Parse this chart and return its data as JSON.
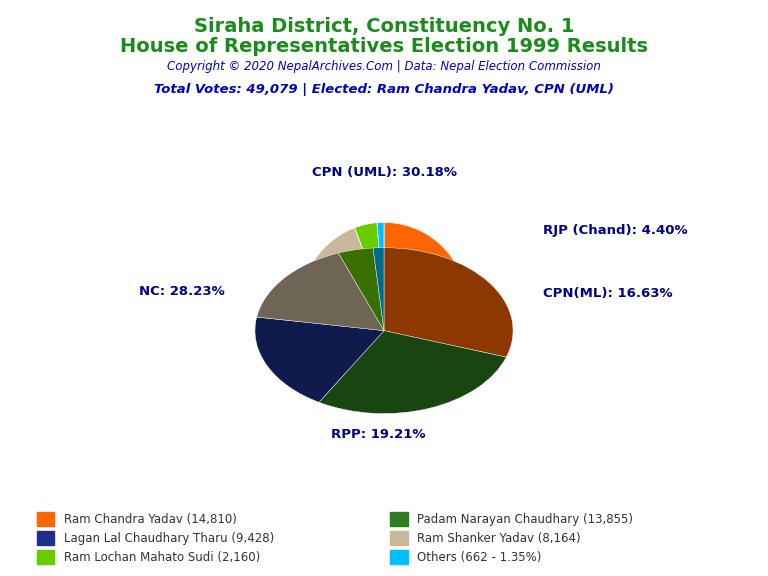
{
  "title_line1": "Siraha District, Constituency No. 1",
  "title_line2": "House of Representatives Election 1999 Results",
  "title_color": "#1a8c1a",
  "copyright_text": "Copyright © 2020 NepalArchives.Com | Data: Nepal Election Commission",
  "copyright_color": "#0000CC",
  "info_text": "Total Votes: 49,079 | Elected: Ram Chandra Yadav, CPN (UML)",
  "info_color": "#0000CC",
  "slices": [
    {
      "label": "CPN (UML): 30.18%",
      "value": 14810,
      "color": "#FF6600"
    },
    {
      "label": "NC: 28.23%",
      "value": 13855,
      "color": "#2E7D1E"
    },
    {
      "label": "RPP: 19.21%",
      "value": 9428,
      "color": "#1C2F8C"
    },
    {
      "label": "CPN(ML): 16.63%",
      "value": 8164,
      "color": "#C8B89A"
    },
    {
      "label": "RJP (Chand): 4.40%",
      "value": 2160,
      "color": "#66CC00"
    },
    {
      "label": "Others: 1.35%",
      "value": 662,
      "color": "#00BFFF"
    }
  ],
  "legend_entries": [
    {
      "label": "Ram Chandra Yadav (14,810)",
      "color": "#FF6600"
    },
    {
      "label": "Lagan Lal Chaudhary Tharu (9,428)",
      "color": "#1C2F8C"
    },
    {
      "label": "Ram Lochan Mahato Sudi (2,160)",
      "color": "#66CC00"
    },
    {
      "label": "Padam Narayan Chaudhary (13,855)",
      "color": "#2E7D1E"
    },
    {
      "label": "Ram Shanker Yadav (8,164)",
      "color": "#C8B89A"
    },
    {
      "label": "Others (662 - 1.35%)",
      "color": "#00BFFF"
    }
  ],
  "label_color": "#00008B",
  "background_color": "#FFFFFF",
  "startangle": 90
}
